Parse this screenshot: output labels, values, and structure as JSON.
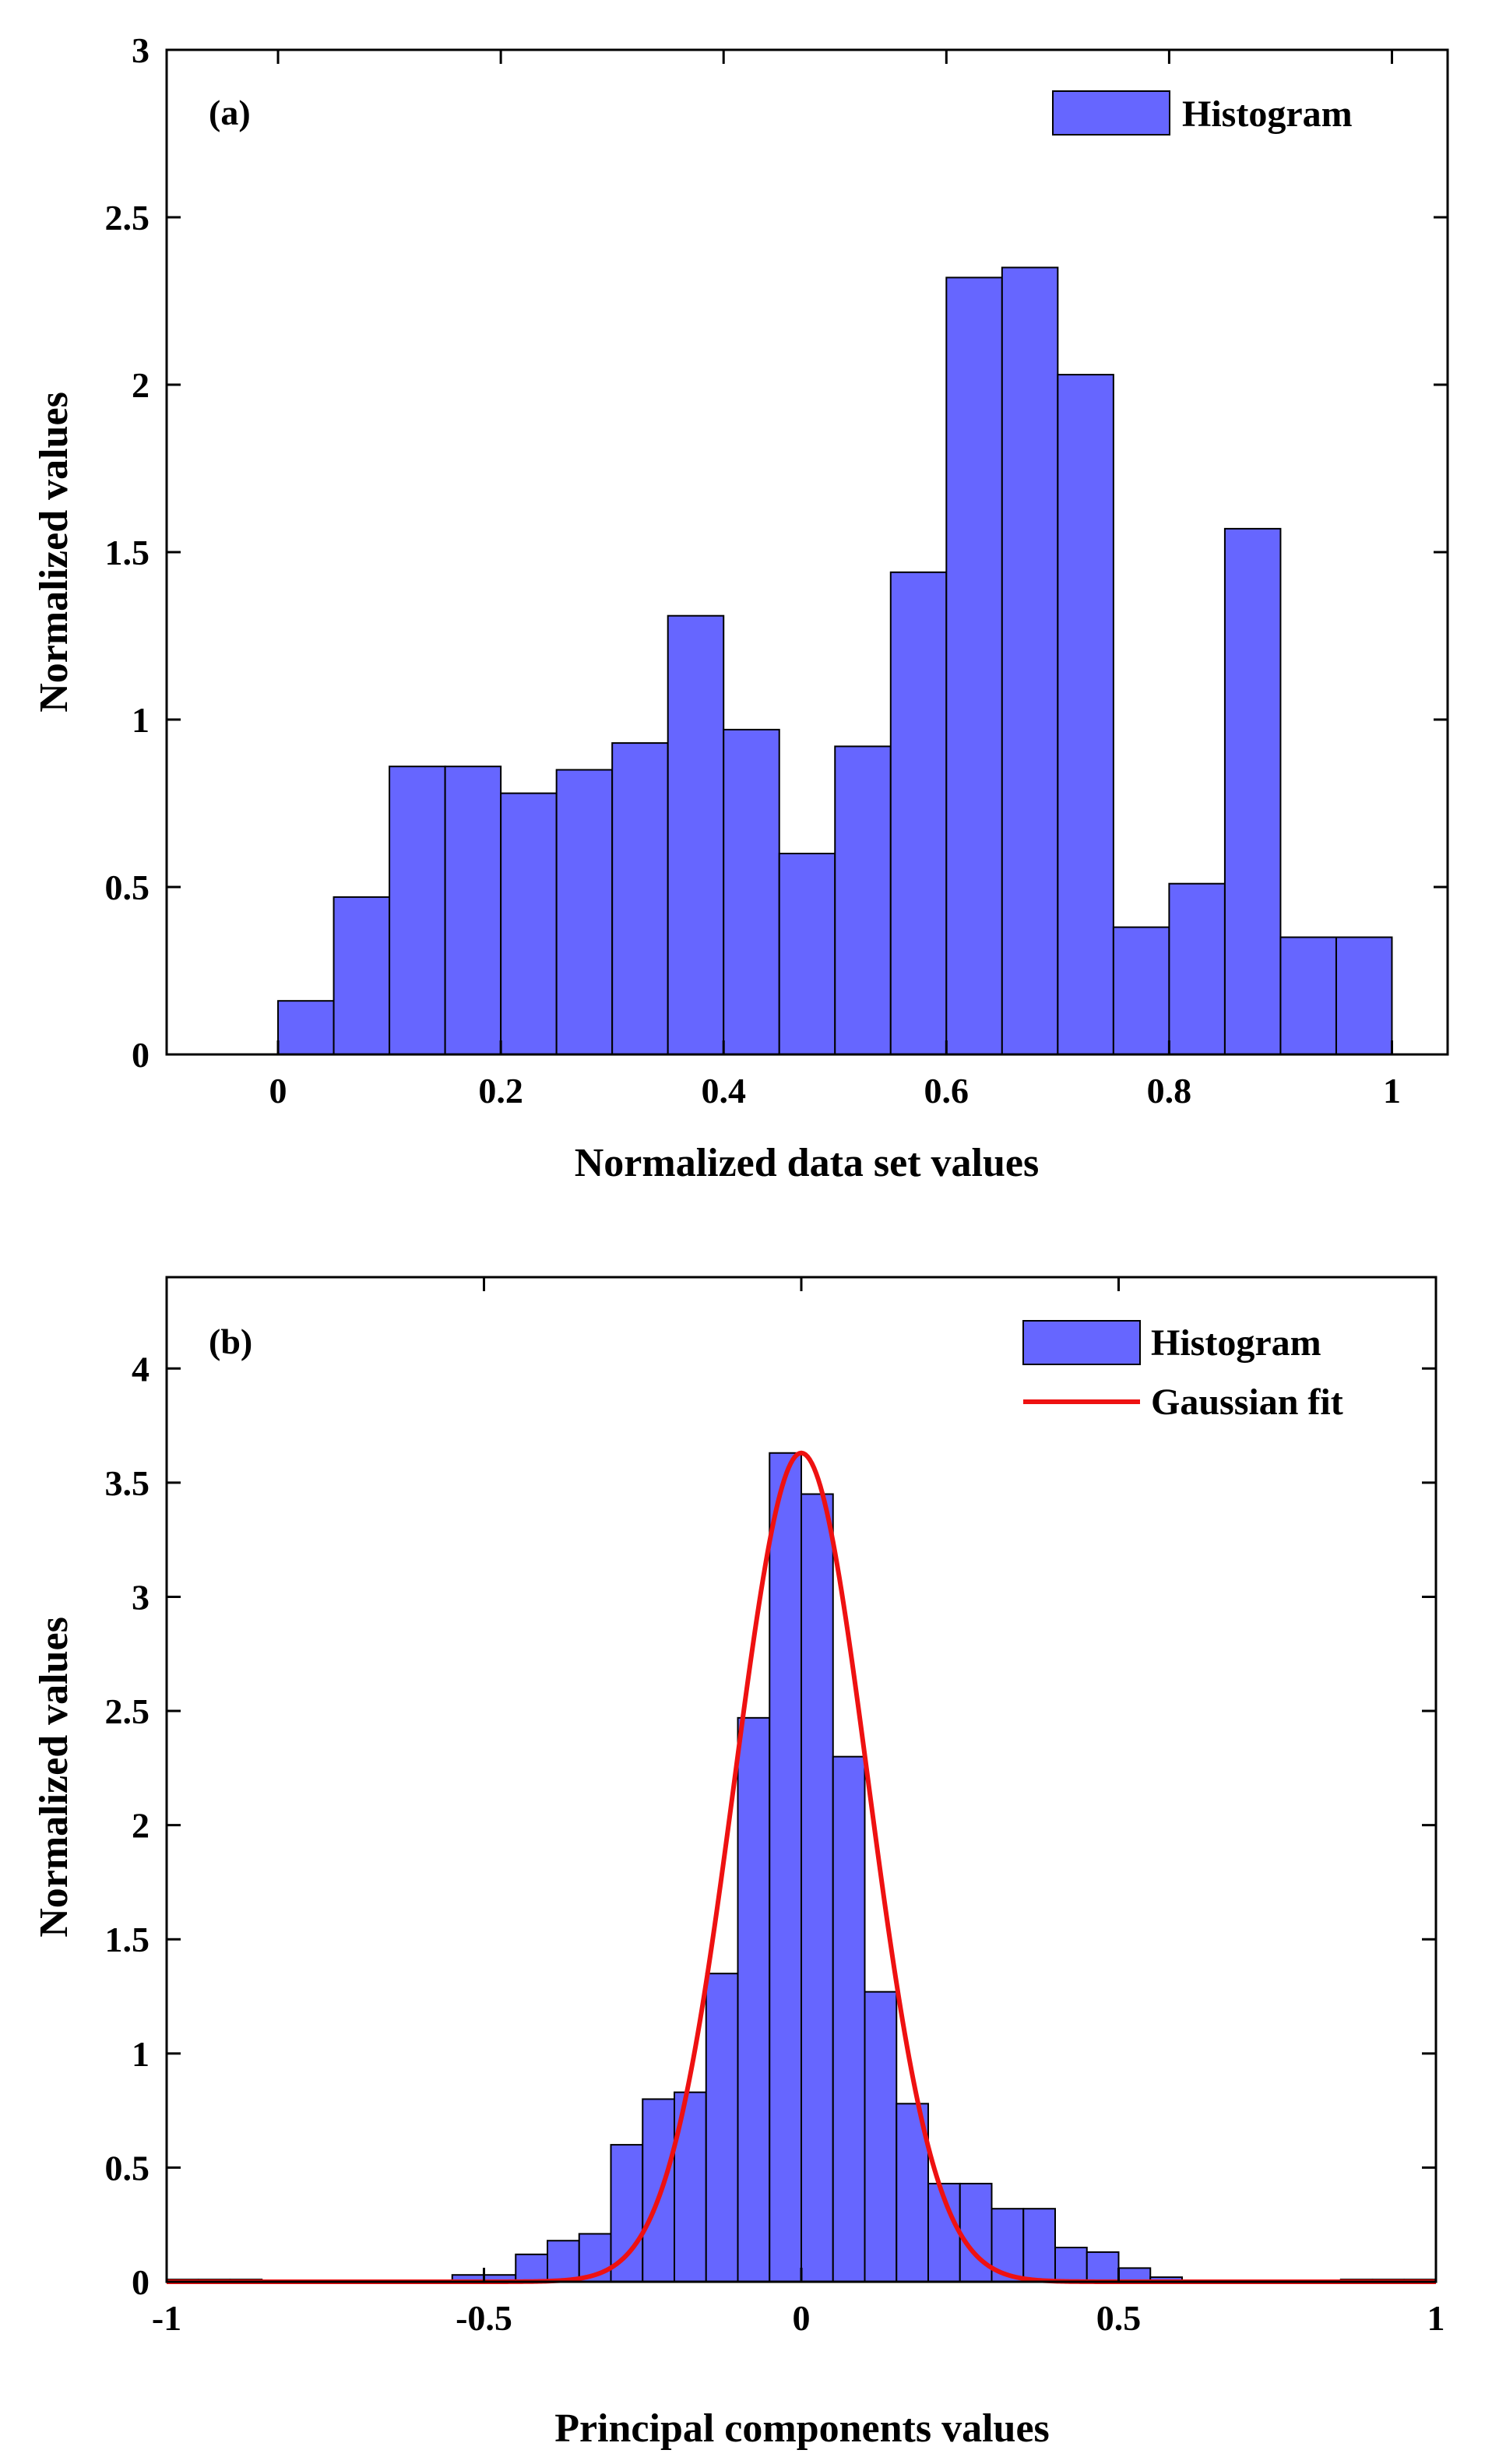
{
  "colors": {
    "bar": "#6666ff",
    "bar_edge": "#000000",
    "fit": "#ee1111",
    "axis": "#000000"
  },
  "chart_data": [
    {
      "type": "bar",
      "panel_label": "(a)",
      "xlabel": "Normalized data set values",
      "ylabel": "Normalized values",
      "xlim": [
        -0.1,
        1.05
      ],
      "ylim": [
        0,
        3
      ],
      "xticks": [
        0,
        0.2,
        0.4,
        0.6,
        0.8,
        1
      ],
      "xtick_labels": [
        "0",
        "0.2",
        "0.4",
        "0.6",
        "0.8",
        "1"
      ],
      "yticks": [
        0,
        0.5,
        1,
        1.5,
        2,
        2.5,
        3
      ],
      "ytick_labels": [
        "0",
        "0.5",
        "1",
        "1.5",
        "2",
        "2.5",
        "3"
      ],
      "bin_width": 0.05,
      "bin_starts": [
        0,
        0.05,
        0.1,
        0.15,
        0.2,
        0.25,
        0.3,
        0.35,
        0.4,
        0.45,
        0.5,
        0.55,
        0.6,
        0.65,
        0.7,
        0.75,
        0.8,
        0.85,
        0.9,
        0.95
      ],
      "values": [
        0.16,
        0.47,
        0.86,
        0.86,
        0.78,
        0.85,
        0.93,
        1.31,
        0.97,
        0.6,
        0.92,
        1.44,
        2.32,
        2.35,
        2.03,
        0.38,
        0.51,
        1.57,
        0.35,
        0.35
      ],
      "legend": [
        {
          "label": "Histogram",
          "kind": "patch"
        }
      ],
      "legend_position": "top-right"
    },
    {
      "type": "bar",
      "panel_label": "(b)",
      "xlabel": "Principal components values",
      "ylabel": "Normalized values",
      "xlim": [
        -1,
        1
      ],
      "ylim": [
        0,
        4.4
      ],
      "xticks": [
        -1,
        -0.5,
        0,
        0.5,
        1
      ],
      "xtick_labels": [
        "-1",
        "-0.5",
        "0",
        "0.5",
        "1"
      ],
      "yticks": [
        0,
        0.5,
        1,
        1.5,
        2,
        2.5,
        3,
        3.5,
        4
      ],
      "ytick_labels": [
        "0",
        "0.5",
        "1",
        "1.5",
        "2",
        "2.5",
        "3",
        "3.5",
        "4"
      ],
      "bin_width": 0.05,
      "bin_starts": [
        -1.0,
        -0.95,
        -0.9,
        -0.85,
        -0.8,
        -0.75,
        -0.7,
        -0.65,
        -0.6,
        -0.55,
        -0.5,
        -0.45,
        -0.4,
        -0.35,
        -0.3,
        -0.25,
        -0.2,
        -0.15,
        -0.1,
        -0.05,
        0.0,
        0.05,
        0.1,
        0.15,
        0.2,
        0.25,
        0.3,
        0.35,
        0.4,
        0.45,
        0.5,
        0.55,
        0.6,
        0.65,
        0.7,
        0.75,
        0.8,
        0.85,
        0.9,
        0.95
      ],
      "values": [
        0.01,
        0.01,
        0.01,
        0,
        0,
        0,
        0,
        0,
        0,
        0.03,
        0.03,
        0.12,
        0.18,
        0.21,
        0.6,
        0.8,
        0.83,
        1.35,
        2.47,
        3.63,
        3.45,
        2.3,
        1.27,
        0.78,
        0.43,
        0.43,
        0.32,
        0.32,
        0.15,
        0.13,
        0.06,
        0.02,
        0,
        0,
        0,
        0,
        0,
        0.01,
        0.01,
        0.01
      ],
      "fit": {
        "type": "gaussian",
        "amplitude": 3.63,
        "mean": 0.0,
        "sigma": 0.105,
        "name": "Gaussian fit"
      },
      "legend": [
        {
          "label": "Histogram",
          "kind": "patch"
        },
        {
          "label": "Gaussian fit",
          "kind": "line"
        }
      ],
      "legend_position": "top-right"
    }
  ]
}
